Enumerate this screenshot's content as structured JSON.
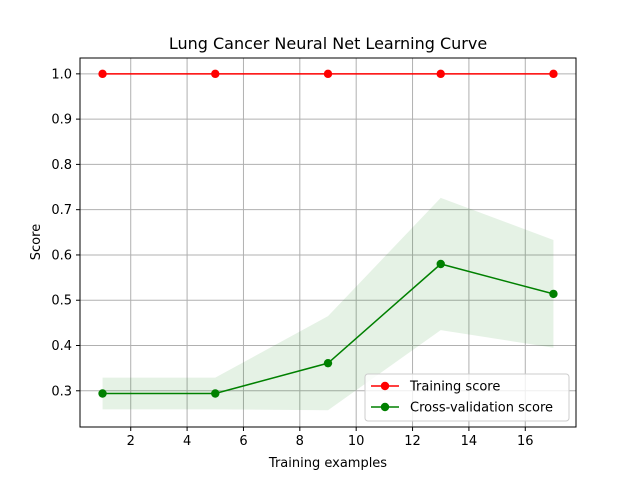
{
  "chart_data": {
    "type": "line",
    "title": "Lung Cancer Neural Net Learning Curve",
    "xlabel": "Training examples",
    "ylabel": "Score",
    "xlim": [
      0.2,
      17.8
    ],
    "ylim": [
      0.22,
      1.035
    ],
    "xticks": [
      2,
      4,
      6,
      8,
      10,
      12,
      14,
      16
    ],
    "yticks": [
      0.3,
      0.4,
      0.5,
      0.6,
      0.7,
      0.8,
      0.9,
      1.0
    ],
    "x": [
      1,
      5,
      9,
      13,
      17
    ],
    "grid": true,
    "legend_position": "lower-right",
    "series": [
      {
        "name": "Training score",
        "color": "#ff0000",
        "marker": "circle",
        "values": [
          1.0,
          1.0,
          1.0,
          1.0,
          1.0
        ],
        "band_lower": [
          1.0,
          1.0,
          1.0,
          1.0,
          1.0
        ],
        "band_upper": [
          1.0,
          1.0,
          1.0,
          1.0,
          1.0
        ]
      },
      {
        "name": "Cross-validation score",
        "color": "#008000",
        "marker": "circle",
        "values": [
          0.294,
          0.294,
          0.361,
          0.58,
          0.514
        ],
        "band_lower": [
          0.259,
          0.259,
          0.257,
          0.434,
          0.395
        ],
        "band_upper": [
          0.329,
          0.329,
          0.465,
          0.726,
          0.633
        ]
      }
    ]
  }
}
